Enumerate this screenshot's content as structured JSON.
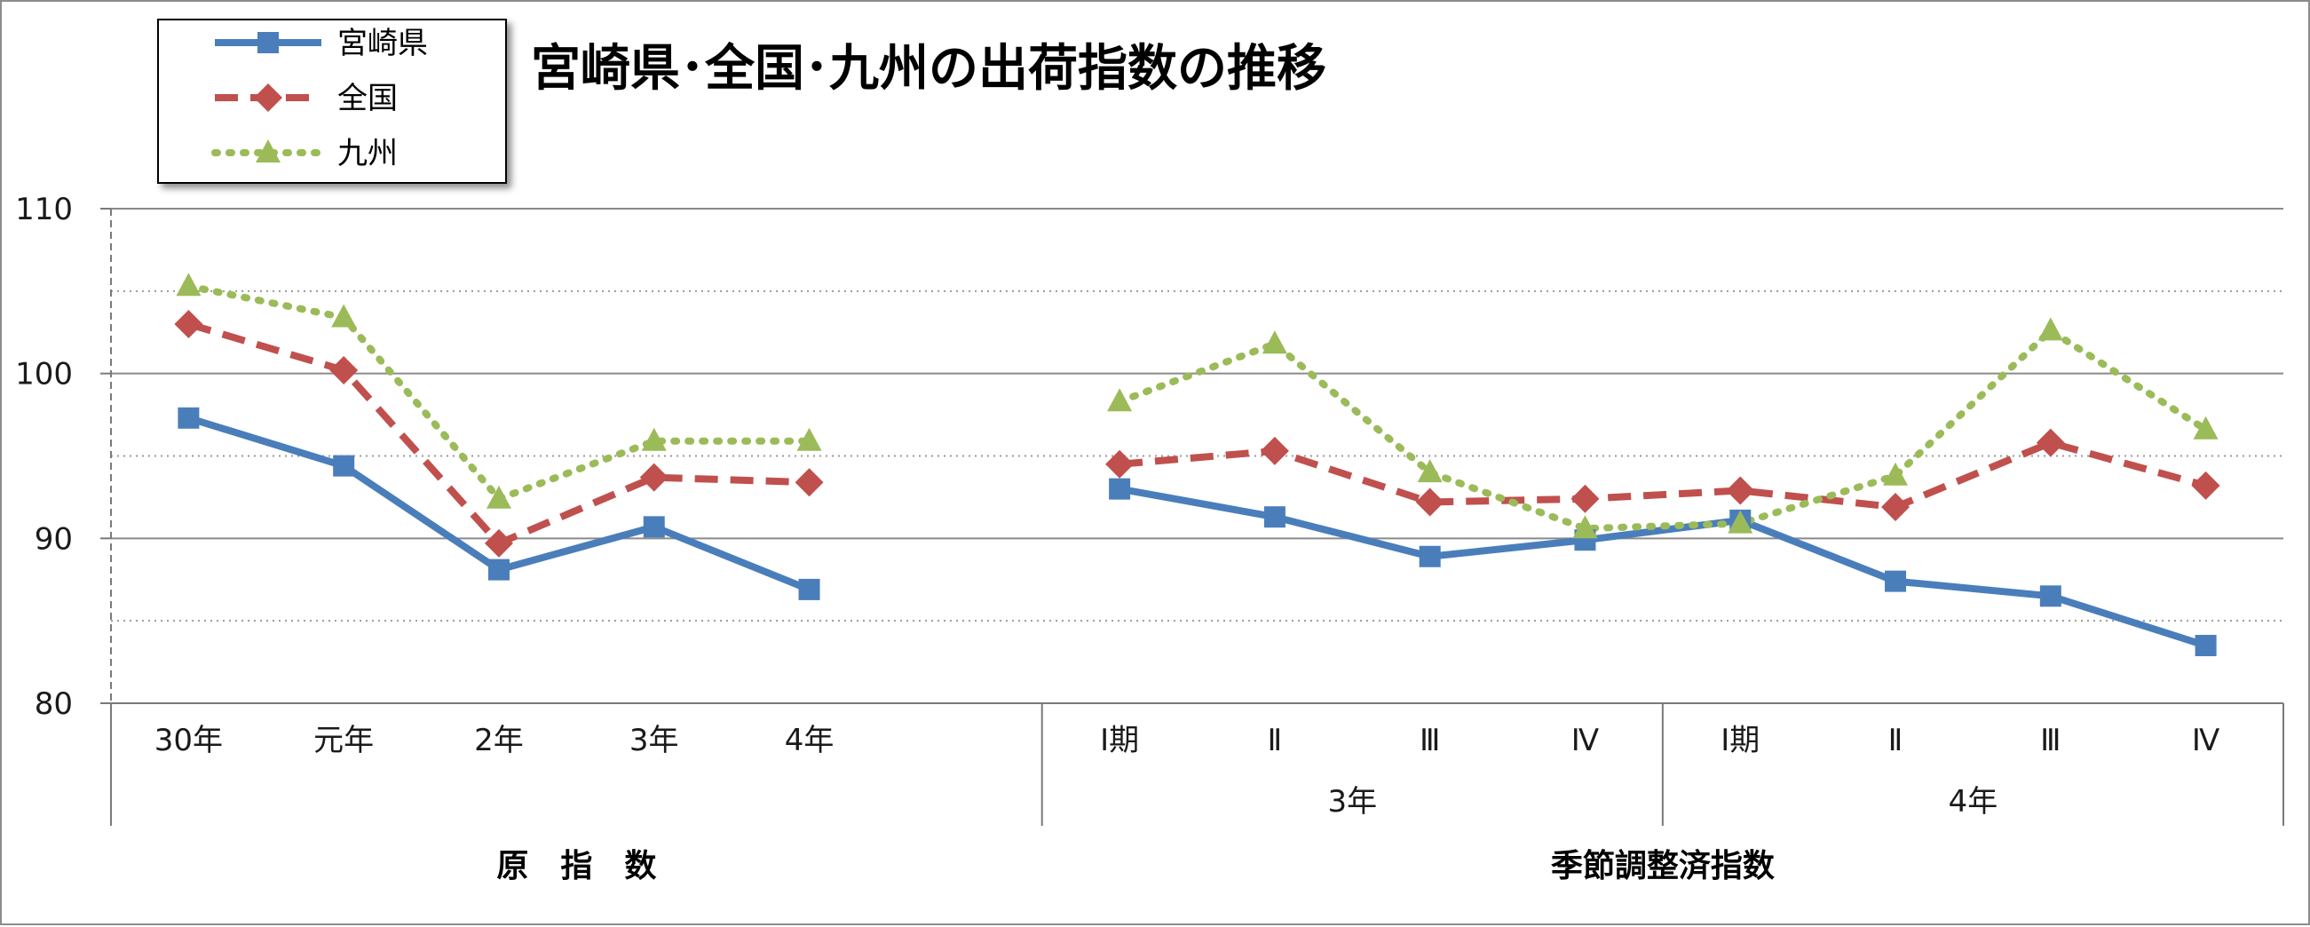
{
  "chart_data": {
    "type": "line",
    "title": "宮崎県･全国･九州の出荷指数の推移",
    "ylim": [
      80,
      110
    ],
    "yticks": [
      80,
      90,
      100,
      110
    ],
    "ytick_labels": [
      "80",
      "90",
      "100",
      "110"
    ],
    "categories": [
      "30年",
      "元年",
      "2年",
      "3年",
      "4年",
      "",
      "Ⅰ期",
      "Ⅱ",
      "Ⅲ",
      "Ⅳ",
      "Ⅰ期",
      "Ⅱ",
      "Ⅲ",
      "Ⅳ"
    ],
    "year_labels": [
      "3年",
      "4年"
    ],
    "group_labels": [
      "原　指　数",
      "季節調整済指数"
    ],
    "grid": "major solid gray, minor dotted gray",
    "legend_position": "top-left",
    "series": [
      {
        "name": "宮崎県",
        "color": "#4a7ebb",
        "marker": "square",
        "line": "solid",
        "values": [
          97.3,
          94.4,
          88.1,
          90.7,
          86.9,
          null,
          93.0,
          91.3,
          88.9,
          89.9,
          91.1,
          87.4,
          86.5,
          83.5
        ]
      },
      {
        "name": "全国",
        "color": "#c0504d",
        "marker": "diamond",
        "line": "dashed",
        "values": [
          103.0,
          100.2,
          89.7,
          93.7,
          93.4,
          null,
          94.5,
          95.3,
          92.2,
          92.4,
          92.9,
          91.9,
          95.8,
          93.2
        ]
      },
      {
        "name": "九州",
        "color": "#9bbb59",
        "marker": "triangle",
        "line": "dotted",
        "values": [
          105.3,
          103.4,
          92.4,
          95.9,
          95.9,
          null,
          98.3,
          101.8,
          94.0,
          90.6,
          90.9,
          93.8,
          102.6,
          96.6
        ]
      }
    ]
  }
}
